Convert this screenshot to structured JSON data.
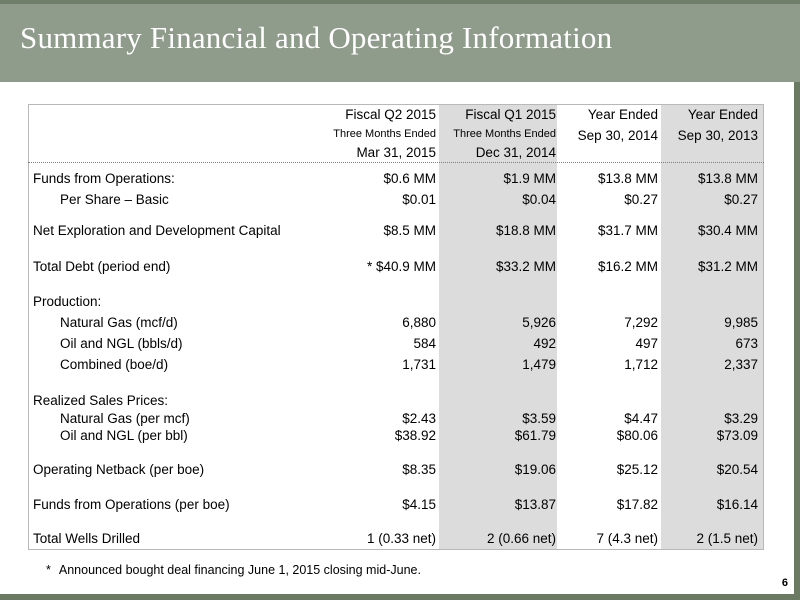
{
  "title": "Summary Financial and Operating Information",
  "columns": [
    {
      "line1": "Fiscal Q2 2015",
      "line2": "Three Months Ended",
      "line3": "Mar 31, 2015"
    },
    {
      "line1": "Fiscal Q1 2015",
      "line2": "Three Months Ended",
      "line3": "Dec 31, 2014"
    },
    {
      "line1": "Year Ended",
      "line2": "Sep 30, 2014",
      "line3": ""
    },
    {
      "line1": "Year Ended",
      "line2": "Sep 30, 2013",
      "line3": ""
    }
  ],
  "rows": {
    "ffo": {
      "label": "Funds from Operations:",
      "values": [
        "$0.6 MM",
        "$1.9 MM",
        "$13.8 MM",
        "$13.8 MM"
      ]
    },
    "per_share": {
      "label": "Per Share – Basic",
      "values": [
        "$0.01",
        "$0.04",
        "$0.27",
        "$0.27"
      ]
    },
    "capex": {
      "label": "Net Exploration and Development Capital",
      "values": [
        "$8.5 MM",
        "$18.8 MM",
        "$31.7 MM",
        "$30.4 MM"
      ]
    },
    "debt": {
      "label": "Total Debt (period end)",
      "values": [
        "* $40.9 MM",
        "$33.2 MM",
        "$16.2 MM",
        "$31.2 MM"
      ]
    },
    "production": {
      "label": "Production:"
    },
    "nat_gas": {
      "label": "Natural Gas (mcf/d)",
      "values": [
        "6,880",
        "5,926",
        "7,292",
        "9,985"
      ]
    },
    "oil_ngl": {
      "label": "Oil and NGL (bbls/d)",
      "values": [
        "584",
        "492",
        "497",
        "673"
      ]
    },
    "combined": {
      "label": "Combined (boe/d)",
      "values": [
        "1,731",
        "1,479",
        "1,712",
        "2,337"
      ]
    },
    "prices": {
      "label": "Realized Sales Prices:"
    },
    "gas_price": {
      "label": "Natural Gas (per mcf)",
      "values": [
        "$2.43",
        "$3.59",
        "$4.47",
        "$3.29"
      ]
    },
    "oil_price": {
      "label": "Oil and NGL (per bbl)",
      "values": [
        "$38.92",
        "$61.79",
        "$80.06",
        "$73.09"
      ]
    },
    "netback": {
      "label": "Operating Netback (per boe)",
      "values": [
        "$8.35",
        "$19.06",
        "$25.12",
        "$20.54"
      ]
    },
    "ffo_boe": {
      "label": "Funds from Operations (per boe)",
      "values": [
        "$4.15",
        "$13.87",
        "$17.82",
        "$16.14"
      ]
    },
    "wells": {
      "label": "Total Wells Drilled",
      "values": [
        "1 (0.33 net)",
        "2 (0.66 net)",
        "7 (4.3 net)",
        "2 (1.5 net)"
      ]
    }
  },
  "footnote": {
    "mark": "*",
    "text": "Announced bought deal financing June 1, 2015 closing mid-June."
  },
  "page_number": "6"
}
